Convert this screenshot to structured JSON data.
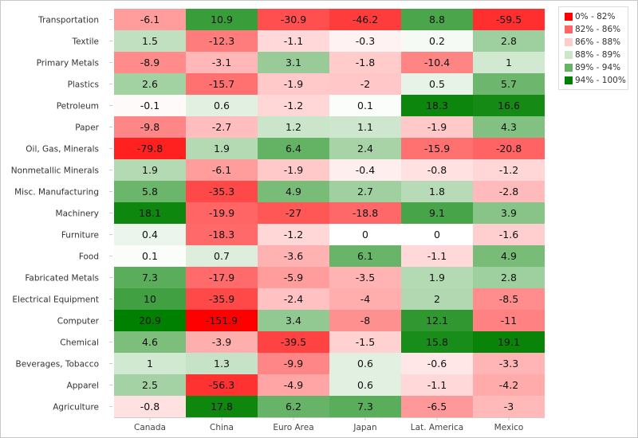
{
  "chart_data": {
    "type": "heatmap",
    "categories_x": [
      "Canada",
      "China",
      "Euro Area",
      "Japan",
      "Lat. America",
      "Mexico"
    ],
    "categories_y": [
      "Transportation",
      "Textile",
      "Primary Metals",
      "Plastics",
      "Petroleum",
      "Paper",
      "Oil, Gas, Minerals",
      "Nonmetallic Minerals",
      "Misc. Manufacturing",
      "Machinery",
      "Furniture",
      "Food",
      "Fabricated Metals",
      "Electrical Equipment",
      "Computer",
      "Chemical",
      "Beverages, Tobacco",
      "Apparel",
      "Agriculture"
    ],
    "values": [
      [
        -6.1,
        10.9,
        -30.9,
        -46.2,
        8.8,
        -59.5
      ],
      [
        1.5,
        -12.3,
        -1.1,
        -0.3,
        0.2,
        2.8
      ],
      [
        -8.9,
        -3.1,
        3.1,
        -1.8,
        -10.4,
        1
      ],
      [
        2.6,
        -15.7,
        -1.9,
        -2,
        0.5,
        5.7
      ],
      [
        -0.1,
        0.6,
        -1.2,
        0.1,
        18.3,
        16.6
      ],
      [
        -9.8,
        -2.7,
        1.2,
        1.1,
        -1.9,
        4.3
      ],
      [
        -79.8,
        1.9,
        6.4,
        2.4,
        -15.9,
        -20.8
      ],
      [
        1.9,
        -6.1,
        -1.9,
        -0.4,
        -0.8,
        -1.2
      ],
      [
        5.8,
        -35.3,
        4.9,
        2.7,
        1.8,
        -2.8
      ],
      [
        18.1,
        -19.9,
        -27,
        -18.8,
        9.1,
        3.9
      ],
      [
        0.4,
        -18.3,
        -1.2,
        0,
        0,
        -1.6
      ],
      [
        0.1,
        0.7,
        -3.6,
        6.1,
        -1.1,
        4.9
      ],
      [
        7.3,
        -17.9,
        -5.9,
        -3.5,
        1.9,
        2.8
      ],
      [
        10,
        -35.9,
        -2.4,
        -4,
        2,
        -8.5
      ],
      [
        20.9,
        -151.9,
        3.4,
        -8,
        12.1,
        -11
      ],
      [
        4.6,
        -3.9,
        -39.5,
        -1.5,
        15.8,
        19.1
      ],
      [
        1,
        1.3,
        -9.9,
        0.6,
        -0.6,
        -3.3
      ],
      [
        2.5,
        -56.3,
        -4.9,
        0.6,
        -1.1,
        -4.2
      ],
      [
        -0.8,
        17.8,
        6.2,
        7.3,
        -6.5,
        -3
      ]
    ],
    "legend": [
      {
        "label": "0% - 82%",
        "color": "#ff0000"
      },
      {
        "label": "82% - 86%",
        "color": "#ff6666"
      },
      {
        "label": "86% - 88%",
        "color": "#ffcccc"
      },
      {
        "label": "88% - 89%",
        "color": "#cce6cc"
      },
      {
        "label": "89% - 94%",
        "color": "#66b366"
      },
      {
        "label": "94% - 100%",
        "color": "#008000"
      }
    ],
    "legend_position": "top-right",
    "colors": {
      "negative": "#ff0000",
      "positive": "#008000",
      "neutral": "#ffffff"
    }
  }
}
